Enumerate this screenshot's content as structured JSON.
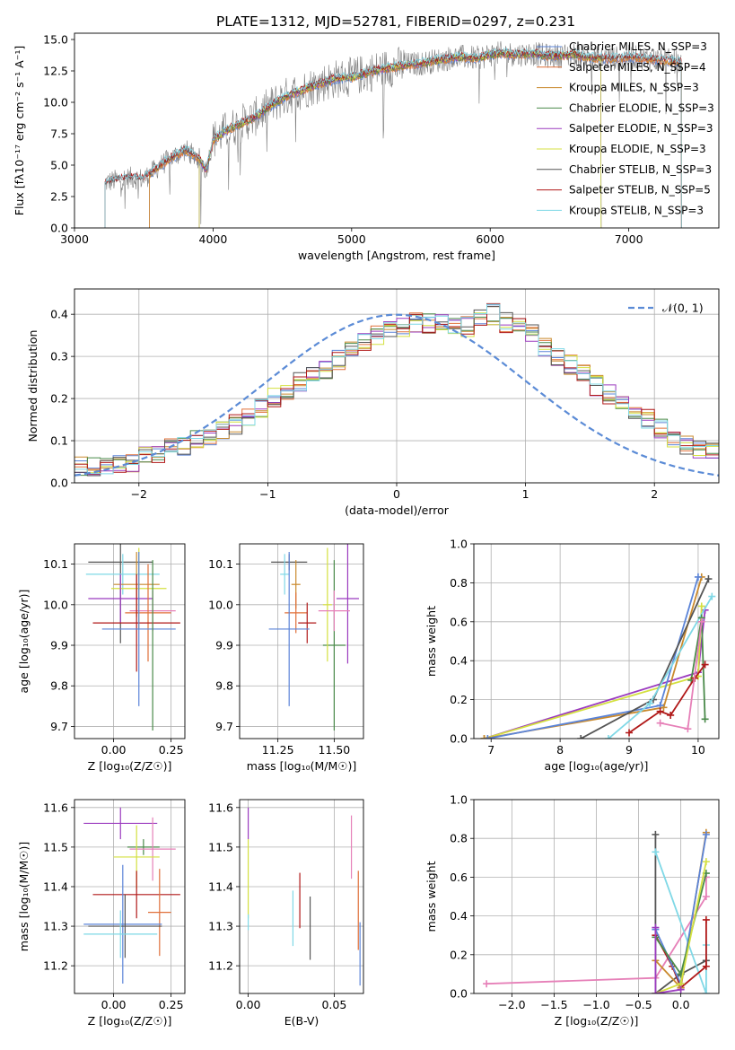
{
  "colors": {
    "chabrier_miles": "#5b84d8",
    "salpeter_miles": "#e0703a",
    "kroupa_miles": "#c98a2e",
    "chabrier_elodie": "#4a8a4a",
    "salpeter_elodie": "#9b3bbf",
    "kroupa_elodie": "#d4e040",
    "chabrier_stelib": "#555555",
    "salpeter_stelib": "#b01818",
    "kroupa_stelib": "#7fd8e6",
    "pink": "#e680b8",
    "spectrum": "#7f7f7f",
    "normal": "#5b8bd6"
  },
  "chart_data": [
    {
      "id": "spectrum",
      "type": "line",
      "title": "PLATE=1312, MJD=52781, FIBERID=0297, z=0.231",
      "xlabel": "wavelength [Angstrom, rest frame]",
      "ylabel": "Flux [fλ10⁻¹⁷ erg cm⁻² s⁻¹ A⁻¹]",
      "xlim": [
        3000,
        7650
      ],
      "ylim": [
        0,
        15.5
      ],
      "xticks": [
        3000,
        4000,
        5000,
        6000,
        7000
      ],
      "yticks": [
        0.0,
        2.5,
        5.0,
        7.5,
        10.0,
        12.5,
        15.0
      ],
      "grid": false,
      "legend_position": "top-right",
      "legend": [
        "Chabrier MILES, N_SSP=3",
        "Salpeter MILES, N_SSP=4",
        "Kroupa MILES, N_SSP=3",
        "Chabrier ELODIE, N_SSP=3",
        "Salpeter ELODIE, N_SSP=3",
        "Kroupa ELODIE, N_SSP=3",
        "Chabrier STELIB, N_SSP=3",
        "Salpeter STELIB, N_SSP=5",
        "Kroupa STELIB, N_SSP=3"
      ],
      "continuum": {
        "x": [
          3220,
          3300,
          3400,
          3500,
          3600,
          3700,
          3800,
          3900,
          3950,
          4000,
          4100,
          4200,
          4300,
          4400,
          4500,
          4600,
          4700,
          4800,
          4900,
          5000,
          5100,
          5200,
          5300,
          5400,
          5500,
          5600,
          5700,
          5800,
          5900,
          6000,
          6100,
          6200,
          6300,
          6400,
          6500,
          6600,
          6700,
          6800,
          6900,
          7000,
          7100,
          7200,
          7300,
          7380
        ],
        "y": [
          3.6,
          3.8,
          4.0,
          3.9,
          4.8,
          5.6,
          6.2,
          5.5,
          4.6,
          7.0,
          7.8,
          8.3,
          8.8,
          9.6,
          10.3,
          10.8,
          11.2,
          11.6,
          11.9,
          12.0,
          12.3,
          12.6,
          12.8,
          13.0,
          13.1,
          13.3,
          13.5,
          13.6,
          13.5,
          13.8,
          13.9,
          13.8,
          13.9,
          13.7,
          13.7,
          13.8,
          13.6,
          13.5,
          13.5,
          13.6,
          13.5,
          13.4,
          13.3,
          13.2
        ]
      }
    },
    {
      "id": "residuals",
      "type": "step",
      "xlabel": "(data-model)/error",
      "ylabel": "Normed distribution",
      "xlim": [
        -2.5,
        2.5
      ],
      "ylim": [
        0,
        0.46
      ],
      "xticks": [
        -2,
        -1,
        0,
        1,
        2
      ],
      "yticks": [
        0.0,
        0.1,
        0.2,
        0.3,
        0.4
      ],
      "grid": true,
      "legend_position": "top-right",
      "legend": [
        "𝒩(0, 1)"
      ],
      "bin_width": 0.1,
      "bin_start": -2.5,
      "base_hist": [
        0.04,
        0.04,
        0.04,
        0.05,
        0.05,
        0.06,
        0.07,
        0.08,
        0.09,
        0.1,
        0.11,
        0.12,
        0.14,
        0.16,
        0.18,
        0.2,
        0.22,
        0.24,
        0.25,
        0.27,
        0.29,
        0.31,
        0.33,
        0.35,
        0.36,
        0.37,
        0.38,
        0.38,
        0.38,
        0.37,
        0.37,
        0.39,
        0.4,
        0.38,
        0.37,
        0.35,
        0.32,
        0.3,
        0.28,
        0.26,
        0.23,
        0.21,
        0.19,
        0.17,
        0.15,
        0.13,
        0.11,
        0.09,
        0.08,
        0.07
      ]
    },
    {
      "id": "age_vs_z",
      "type": "errorbar",
      "xlabel": "Z [log₁₀(Z/Z☉)]",
      "ylabel": "age  [log₁₀(age/yr)]",
      "xlim": [
        -0.17,
        0.31
      ],
      "ylim": [
        9.67,
        10.15
      ],
      "xticks": [
        0.0,
        0.25
      ],
      "yticks": [
        9.7,
        9.8,
        9.9,
        10.0,
        10.1
      ],
      "grid": true,
      "points": [
        {
          "c": "chabrier_stelib",
          "x": 0.03,
          "xe": 0.14,
          "y": 10.105,
          "ye": 0.2
        },
        {
          "c": "kroupa_stelib",
          "x": 0.04,
          "xe": 0.16,
          "y": 10.075,
          "ye": 0.05
        },
        {
          "c": "kroupa_miles",
          "x": 0.1,
          "xe": 0.1,
          "y": 10.05,
          "ye": 0.08
        },
        {
          "c": "kroupa_elodie",
          "x": 0.11,
          "xe": 0.12,
          "y": 10.04,
          "ye": 0.1
        },
        {
          "c": "salpeter_elodie",
          "x": 0.03,
          "xe": 0.14,
          "y": 10.015,
          "ye": 0.06
        },
        {
          "c": "pink",
          "x": 0.17,
          "xe": 0.1,
          "y": 9.985,
          "ye": 0.05
        },
        {
          "c": "salpeter_miles",
          "x": 0.15,
          "xe": 0.1,
          "y": 9.98,
          "ye": 0.12
        },
        {
          "c": "salpeter_stelib",
          "x": 0.1,
          "xe": 0.19,
          "y": 9.955,
          "ye": 0.12
        },
        {
          "c": "chabrier_miles",
          "x": 0.11,
          "xe": 0.16,
          "y": 9.94,
          "ye": 0.19
        },
        {
          "c": "chabrier_elodie",
          "x": 0.17,
          "xe": 0.0,
          "y": 9.9,
          "ye": 0.21
        }
      ]
    },
    {
      "id": "age_vs_mass",
      "type": "errorbar",
      "xlabel": "mass [log₁₀(M/M☉)]",
      "ylabel": "",
      "xlim": [
        11.08,
        11.63
      ],
      "ylim": [
        9.67,
        10.15
      ],
      "xticks": [
        11.25,
        11.5
      ],
      "yticks": [
        9.7,
        9.8,
        9.9,
        10.0,
        10.1
      ],
      "grid": true,
      "points": [
        {
          "c": "chabrier_stelib",
          "x": 11.3,
          "xe": 0.08,
          "y": 10.105,
          "ye": 0.02
        },
        {
          "c": "kroupa_stelib",
          "x": 11.28,
          "xe": 0.02,
          "y": 10.075,
          "ye": 0.05
        },
        {
          "c": "kroupa_miles",
          "x": 11.33,
          "xe": 0.02,
          "y": 10.05,
          "ye": 0.06
        },
        {
          "c": "chabrier_elodie",
          "x": 11.5,
          "xe": 0.05,
          "y": 9.9,
          "ye": 0.21
        },
        {
          "c": "kroupa_elodie",
          "x": 11.47,
          "xe": 0.02,
          "y": 10.0,
          "ye": 0.14
        },
        {
          "c": "salpeter_elodie",
          "x": 11.56,
          "xe": 0.05,
          "y": 10.015,
          "ye": 0.16
        },
        {
          "c": "pink",
          "x": 11.5,
          "xe": 0.07,
          "y": 9.985,
          "ye": 0.05
        },
        {
          "c": "salpeter_miles",
          "x": 11.33,
          "xe": 0.05,
          "y": 9.98,
          "ye": 0.05
        },
        {
          "c": "salpeter_stelib",
          "x": 11.38,
          "xe": 0.04,
          "y": 9.955,
          "ye": 0.05
        },
        {
          "c": "chabrier_miles",
          "x": 11.3,
          "xe": 0.09,
          "y": 9.94,
          "ye": 0.19
        }
      ]
    },
    {
      "id": "weight_vs_age",
      "type": "line",
      "xlabel": "age  [log₁₀(age/yr)]",
      "ylabel": "mass weight",
      "xlim": [
        6.75,
        10.3
      ],
      "ylim": [
        0,
        1.0
      ],
      "xticks": [
        7,
        8,
        9,
        10
      ],
      "yticks": [
        0.0,
        0.2,
        0.4,
        0.6,
        0.8,
        1.0
      ],
      "grid": true,
      "series": [
        {
          "c": "salpeter_elodie",
          "x": [
            6.9,
            10.0,
            10.1
          ],
          "y": [
            0.0,
            0.34,
            0.66
          ]
        },
        {
          "c": "kroupa_elodie",
          "x": [
            6.9,
            10.0,
            10.05
          ],
          "y": [
            0.0,
            0.32,
            0.68
          ]
        },
        {
          "c": "kroupa_miles",
          "x": [
            6.9,
            9.5,
            10.05
          ],
          "y": [
            0.0,
            0.16,
            0.83
          ]
        },
        {
          "c": "chabrier_miles",
          "x": [
            6.95,
            9.45,
            10.0
          ],
          "y": [
            0.0,
            0.17,
            0.83
          ]
        },
        {
          "c": "chabrier_stelib",
          "x": [
            8.3,
            9.35,
            10.15
          ],
          "y": [
            0.0,
            0.2,
            0.82
          ]
        },
        {
          "c": "kroupa_stelib",
          "x": [
            8.7,
            9.3,
            10.2
          ],
          "y": [
            0.0,
            0.18,
            0.73
          ]
        },
        {
          "c": "chabrier_elodie",
          "x": [
            9.9,
            10.05,
            10.1
          ],
          "y": [
            0.3,
            0.62,
            0.1
          ]
        },
        {
          "c": "salpeter_stelib",
          "x": [
            9.0,
            9.45,
            9.6,
            9.95,
            10.1
          ],
          "y": [
            0.03,
            0.14,
            0.12,
            0.31,
            0.38
          ]
        },
        {
          "c": "pink",
          "x": [
            9.45,
            9.85,
            10.05
          ],
          "y": [
            0.08,
            0.05,
            0.6
          ]
        }
      ]
    },
    {
      "id": "mass_vs_z",
      "type": "errorbar",
      "xlabel": "Z [log₁₀(Z/Z☉)]",
      "ylabel": "mass [log₁₀(M/M☉)]",
      "xlim": [
        -0.17,
        0.31
      ],
      "ylim": [
        11.13,
        11.62
      ],
      "xticks": [
        0.0,
        0.25
      ],
      "yticks": [
        11.2,
        11.3,
        11.4,
        11.5,
        11.6
      ],
      "grid": true,
      "points": [
        {
          "c": "salpeter_elodie",
          "x": 0.03,
          "xe": 0.16,
          "y": 11.56,
          "ye": 0.04
        },
        {
          "c": "chabrier_elodie",
          "x": 0.13,
          "xe": 0.07,
          "y": 11.5,
          "ye": 0.02
        },
        {
          "c": "pink",
          "x": 0.17,
          "xe": 0.1,
          "y": 11.495,
          "ye": 0.08
        },
        {
          "c": "kroupa_elodie",
          "x": 0.1,
          "xe": 0.1,
          "y": 11.475,
          "ye": 0.08
        },
        {
          "c": "salpeter_stelib",
          "x": 0.1,
          "xe": 0.19,
          "y": 11.38,
          "ye": 0.06
        },
        {
          "c": "salpeter_miles",
          "x": 0.2,
          "xe": 0.05,
          "y": 11.335,
          "ye": 0.11
        },
        {
          "c": "chabrier_miles",
          "x": 0.04,
          "xe": 0.17,
          "y": 11.305,
          "ye": 0.15
        },
        {
          "c": "chabrier_stelib",
          "x": 0.05,
          "xe": 0.16,
          "y": 11.3,
          "ye": 0.08
        },
        {
          "c": "kroupa_stelib",
          "x": 0.03,
          "xe": 0.16,
          "y": 11.28,
          "ye": 0.06
        }
      ]
    },
    {
      "id": "mass_vs_ebv",
      "type": "errorbar",
      "xlabel": "E(B-V)",
      "ylabel": "",
      "xlim": [
        -0.005,
        0.067
      ],
      "ylim": [
        11.13,
        11.62
      ],
      "xticks": [
        0.0,
        0.05
      ],
      "yticks": [
        11.2,
        11.3,
        11.4,
        11.5,
        11.6
      ],
      "grid": true,
      "points": [
        {
          "c": "salpeter_elodie",
          "x": 0.0,
          "xe": 0.0,
          "y": 11.56,
          "ye": 0.04
        },
        {
          "c": "kroupa_elodie",
          "x": 0.0,
          "xe": 0.0,
          "y": 11.42,
          "ye": 0.1
        },
        {
          "c": "kroupa_stelib",
          "x": 0.0,
          "xe": 0.0,
          "y": 11.31,
          "ye": 0.02
        },
        {
          "c": "pink",
          "x": 0.06,
          "xe": 0.0,
          "y": 11.5,
          "ye": 0.08
        },
        {
          "c": "salpeter_miles",
          "x": 0.064,
          "xe": 0.0,
          "y": 11.34,
          "ye": 0.1
        },
        {
          "c": "chabrier_miles",
          "x": 0.065,
          "xe": 0.0,
          "y": 11.23,
          "ye": 0.08
        },
        {
          "c": "salpeter_stelib",
          "x": 0.03,
          "xe": 0.0,
          "y": 11.365,
          "ye": 0.07
        },
        {
          "c": "kroupa_stelib",
          "x": 0.026,
          "xe": 0.0,
          "y": 11.32,
          "ye": 0.07
        },
        {
          "c": "chabrier_stelib",
          "x": 0.036,
          "xe": 0.0,
          "y": 11.295,
          "ye": 0.08
        }
      ]
    },
    {
      "id": "weight_vs_z",
      "type": "line",
      "xlabel": "Z [log₁₀(Z/Z☉)]",
      "ylabel": "mass weight",
      "xlim": [
        -2.45,
        0.45
      ],
      "ylim": [
        0,
        1.0
      ],
      "xticks": [
        -2.0,
        -1.5,
        -1.0,
        -0.5,
        0.0
      ],
      "yticks": [
        0.0,
        0.2,
        0.4,
        0.6,
        0.8,
        1.0
      ],
      "grid": true,
      "series": [
        {
          "c": "pink",
          "x": [
            -2.3,
            -0.3,
            0.3,
            0.3
          ],
          "y": [
            0.05,
            0.08,
            0.5,
            0.6
          ]
        },
        {
          "c": "chabrier_stelib",
          "x": [
            -0.3,
            -0.3,
            0.0,
            0.3
          ],
          "y": [
            0.82,
            0.0,
            0.1,
            0.17
          ]
        },
        {
          "c": "kroupa_stelib",
          "x": [
            -0.3,
            0.3,
            0.3
          ],
          "y": [
            0.73,
            0.0,
            0.25
          ]
        },
        {
          "c": "salpeter_stelib",
          "x": [
            -0.3,
            -0.1,
            0.0,
            0.3,
            0.3
          ],
          "y": [
            0.3,
            0.14,
            0.03,
            0.14,
            0.38
          ]
        },
        {
          "c": "kroupa_miles",
          "x": [
            -0.3,
            0.0,
            0.3
          ],
          "y": [
            0.17,
            0.03,
            0.83
          ]
        },
        {
          "c": "chabrier_miles",
          "x": [
            -0.3,
            0.0,
            0.3
          ],
          "y": [
            0.33,
            0.05,
            0.82
          ]
        },
        {
          "c": "chabrier_elodie",
          "x": [
            -0.3,
            0.0,
            0.3
          ],
          "y": [
            0.29,
            0.1,
            0.62
          ]
        },
        {
          "c": "kroupa_elodie",
          "x": [
            -0.3,
            0.0,
            0.3
          ],
          "y": [
            0.0,
            0.05,
            0.68
          ]
        },
        {
          "c": "salpeter_elodie",
          "x": [
            -0.3,
            -0.3,
            0.0
          ],
          "y": [
            0.34,
            0.0,
            0.02
          ]
        }
      ]
    }
  ]
}
